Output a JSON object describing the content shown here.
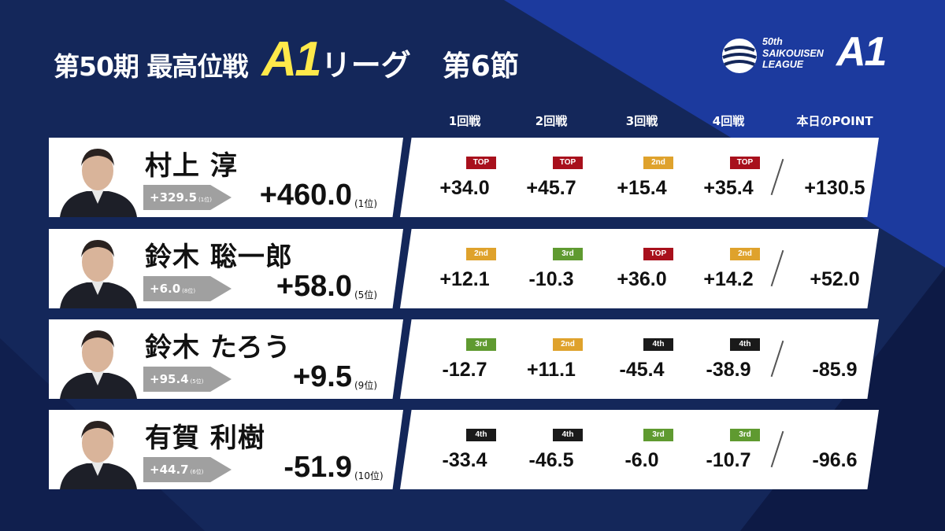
{
  "title": {
    "part1": "第50期 最高位戦",
    "a1": "A1",
    "part2": "リーグ",
    "section": "第6節"
  },
  "logo": {
    "line1": "50th",
    "line2": "SAIKOUISEN",
    "line3": "LEAGUE",
    "a1": "A1"
  },
  "columns": [
    "1回戦",
    "2回戦",
    "3回戦",
    "4回戦",
    "本日のPOINT"
  ],
  "colors": {
    "TOP": "#a8101c",
    "2nd": "#dfa22c",
    "3rd": "#5f9a30",
    "4th": "#1a1a1a"
  },
  "players": [
    {
      "name": "村上 淳",
      "prev": "+329.5",
      "prev_rank": "(1位)",
      "total": "+460.0",
      "rank": "(1位)",
      "games": [
        {
          "place": "TOP",
          "score": "+34.0"
        },
        {
          "place": "TOP",
          "score": "+45.7"
        },
        {
          "place": "2nd",
          "score": "+15.4"
        },
        {
          "place": "TOP",
          "score": "+35.4"
        }
      ],
      "day_point": "+130.5"
    },
    {
      "name": "鈴木 聡一郎",
      "prev": "+6.0",
      "prev_rank": "(8位)",
      "total": "+58.0",
      "rank": "(5位)",
      "games": [
        {
          "place": "2nd",
          "score": "+12.1"
        },
        {
          "place": "3rd",
          "score": "-10.3"
        },
        {
          "place": "TOP",
          "score": "+36.0"
        },
        {
          "place": "2nd",
          "score": "+14.2"
        }
      ],
      "day_point": "+52.0"
    },
    {
      "name": "鈴木 たろう",
      "prev": "+95.4",
      "prev_rank": "(5位)",
      "total": "+9.5",
      "rank": "(9位)",
      "games": [
        {
          "place": "3rd",
          "score": "-12.7"
        },
        {
          "place": "2nd",
          "score": "+11.1"
        },
        {
          "place": "4th",
          "score": "-45.4"
        },
        {
          "place": "4th",
          "score": "-38.9"
        }
      ],
      "day_point": "-85.9"
    },
    {
      "name": "有賀 利樹",
      "prev": "+44.7",
      "prev_rank": "(6位)",
      "total": "-51.9",
      "rank": "(10位)",
      "games": [
        {
          "place": "4th",
          "score": "-33.4"
        },
        {
          "place": "4th",
          "score": "-46.5"
        },
        {
          "place": "3rd",
          "score": "-6.0"
        },
        {
          "place": "3rd",
          "score": "-10.7"
        }
      ],
      "day_point": "-96.6"
    }
  ]
}
